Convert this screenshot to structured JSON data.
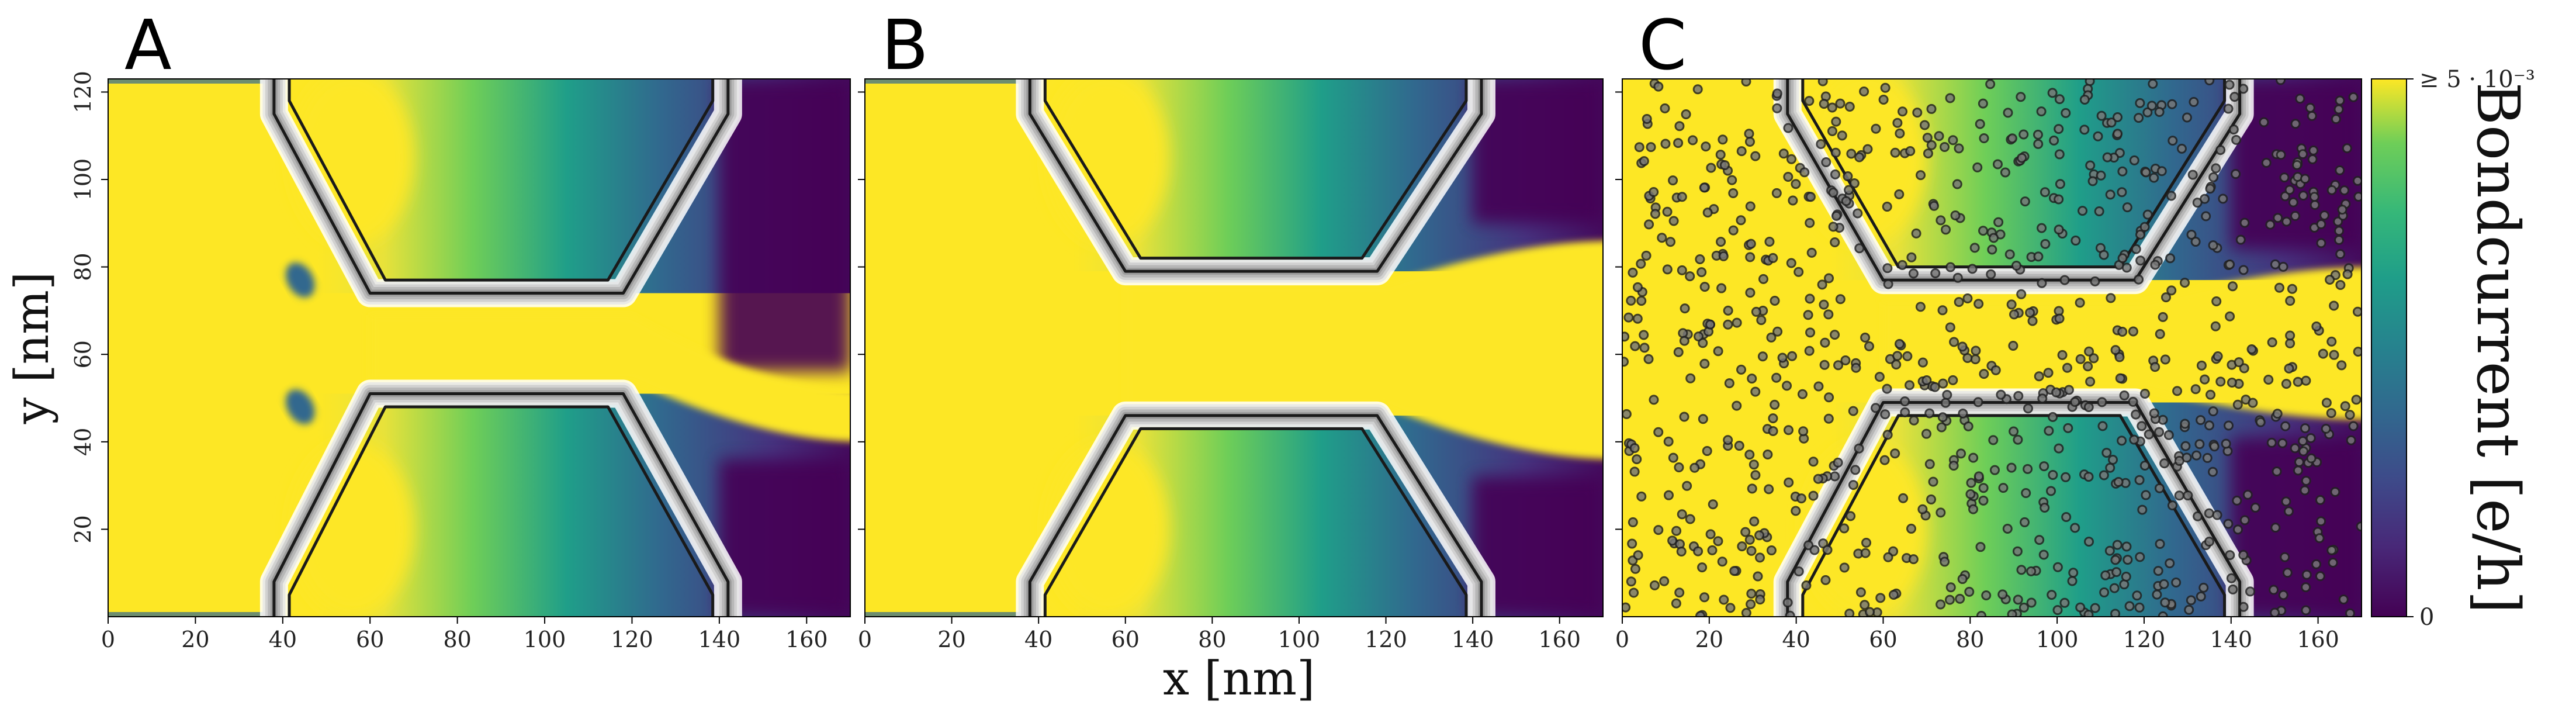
{
  "chart_data": {
    "type": "heatmap",
    "colormap": "viridis",
    "xlabel": "x [nm]",
    "ylabel": "y [nm]",
    "xlim": [
      0,
      170
    ],
    "ylim": [
      0,
      123
    ],
    "xticks": [
      0,
      20,
      40,
      60,
      80,
      100,
      120,
      140,
      160
    ],
    "yticks": [
      20,
      40,
      60,
      80,
      100,
      120
    ],
    "panels": [
      {
        "label": "A",
        "title": "",
        "constriction_y": [
          54,
          69
        ],
        "gate_lower_top": 51,
        "gate_upper_bottom": 74,
        "disorder": false,
        "low_jet": [
          40,
          52
        ],
        "pockets": [
          [
            43,
            48
          ],
          [
            44,
            77
          ]
        ]
      },
      {
        "label": "B",
        "title": "",
        "constriction_y": [
          48,
          76
        ],
        "gate_lower_top": 46,
        "gate_upper_bottom": 79,
        "disorder": false,
        "low_jet": [
          36,
          86
        ],
        "pockets": []
      },
      {
        "label": "C",
        "title": "",
        "constriction_y": [
          52,
          72
        ],
        "gate_lower_top": 49,
        "gate_upper_bottom": 77,
        "disorder": true,
        "low_jet": [
          45,
          80
        ],
        "pockets": []
      }
    ],
    "colorbar": {
      "label": "Bondcurrent [e/h]",
      "min_label": "0",
      "max_label": "≥ 5 · 10⁻³",
      "min": 0,
      "max": 0.005
    }
  }
}
